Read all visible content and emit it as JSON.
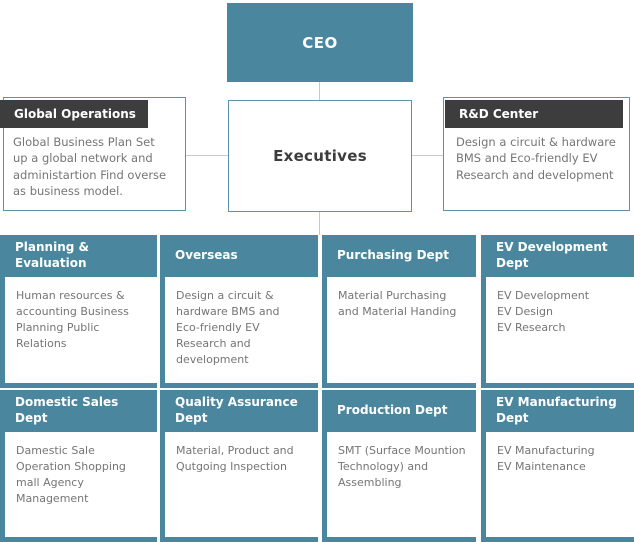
{
  "palette": {
    "teal": "#4a879e",
    "dark_header": "#3d3d3d",
    "body_text": "#757575",
    "title_text": "#3d3d3d",
    "connector": "#c9c9c9",
    "box_border": "#5e92a6"
  },
  "ceo": {
    "label": "CEO"
  },
  "executives": {
    "label": "Executives"
  },
  "global_operations": {
    "title": "Global Operations",
    "body": "Global Business Plan Set\nup a global network and\nadministartion Find overse\nas business model."
  },
  "rnd_center": {
    "title": "R&D Center",
    "body": "Design a circuit & hardware\nBMS and Eco-friendly EV\nResearch and development"
  },
  "departments": [
    {
      "title": "Planning &\nEvaluation",
      "body": "Human resources &\naccounting Business\nPlanning Public\nRelations"
    },
    {
      "title": "Overseas",
      "body": "Design a circuit &\nhardware BMS and\nEco-friendly EV\nResearch and\ndevelopment"
    },
    {
      "title": "Purchasing Dept",
      "body": "Material Purchasing\nand Material Handing"
    },
    {
      "title": "EV Development\nDept",
      "body": "EV Development\nEV Design\nEV Research"
    },
    {
      "title": "Domestic Sales\nDept",
      "body": "Damestic Sale\nOperation Shopping\nmall Agency\nManagement"
    },
    {
      "title": "Quality Assurance\nDept",
      "body": "Material, Product and\nQutgoing Inspection"
    },
    {
      "title": "Production Dept",
      "body": "SMT (Surface Mountion\nTechnology) and\nAssembling"
    },
    {
      "title": "EV Manufacturing\nDept",
      "body": "EV Manufacturing\nEV Maintenance"
    }
  ]
}
